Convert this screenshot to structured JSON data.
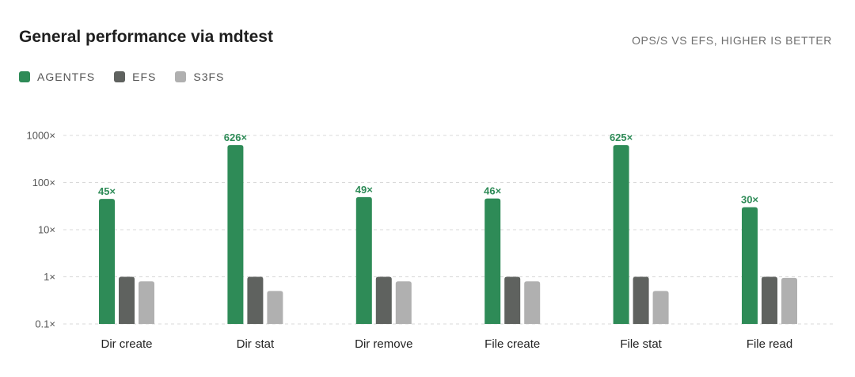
{
  "title": "General performance via mdtest",
  "subtitle": "OPS/S VS EFS, HIGHER IS BETTER",
  "colors": {
    "AGENTFS": "#2e8b57",
    "EFS": "#5f625f",
    "S3FS": "#b0b0b0",
    "label": "#2e8b57"
  },
  "legend": [
    {
      "name": "AGENTFS",
      "color": "#2e8b57"
    },
    {
      "name": "EFS",
      "color": "#5f625f"
    },
    {
      "name": "S3FS",
      "color": "#b0b0b0"
    }
  ],
  "chart_data": {
    "type": "bar",
    "y_scale": "log",
    "ylim": [
      0.1,
      1000
    ],
    "yticks": [
      {
        "value": 1000,
        "label": "1000×"
      },
      {
        "value": 100,
        "label": "100×"
      },
      {
        "value": 10,
        "label": "10×"
      },
      {
        "value": 1,
        "label": "1×"
      },
      {
        "value": 0.1,
        "label": "0.1×"
      }
    ],
    "grid": true,
    "legend_position": "top-left",
    "categories": [
      "Dir create",
      "Dir stat",
      "Dir remove",
      "File create",
      "File stat",
      "File read"
    ],
    "series": [
      {
        "name": "AGENTFS",
        "values": [
          45,
          626,
          49,
          46,
          625,
          30
        ],
        "labels": [
          "45×",
          "626×",
          "49×",
          "46×",
          "625×",
          "30×"
        ]
      },
      {
        "name": "EFS",
        "values": [
          1,
          1,
          1,
          1,
          1,
          1
        ]
      },
      {
        "name": "S3FS",
        "values": [
          0.8,
          0.5,
          0.8,
          0.8,
          0.5,
          0.95
        ]
      }
    ]
  }
}
